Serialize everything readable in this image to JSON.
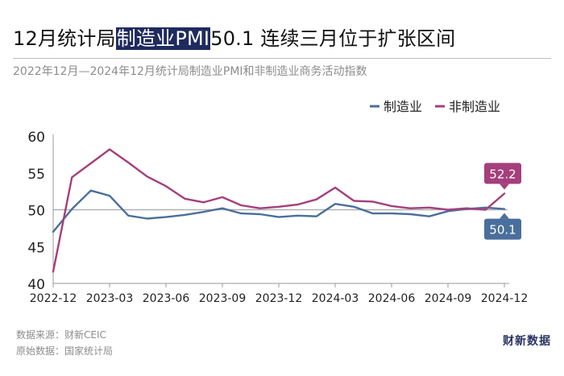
{
  "header": {
    "title_prefix": "12月统计局",
    "title_highlight": "制造业PMI",
    "title_suffix": "50.1 连续三月位于扩张区间",
    "subtitle": "2022年12月—2024年12月统计局制造业PMI和非制造业商务活动指数"
  },
  "footer": {
    "source": "数据来源：财新CEIC",
    "original": "原始数据：国家统计局",
    "brand": "财新数据"
  },
  "colors": {
    "manufacturing": "#4a6f9c",
    "non_manufacturing": "#a43f7c",
    "reference_line": "#b0b0b0",
    "title_highlight_bg": "#1f2a5e"
  },
  "chart_data": {
    "type": "line",
    "title": "",
    "xlabel": "",
    "ylabel": "",
    "x": [
      "2022-12",
      "2023-01",
      "2023-02",
      "2023-03",
      "2023-04",
      "2023-05",
      "2023-06",
      "2023-07",
      "2023-08",
      "2023-09",
      "2023-10",
      "2023-11",
      "2023-12",
      "2024-01",
      "2024-02",
      "2024-03",
      "2024-04",
      "2024-05",
      "2024-06",
      "2024-07",
      "2024-08",
      "2024-09",
      "2024-10",
      "2024-11",
      "2024-12"
    ],
    "x_tick_labels": [
      "2022-12",
      "2023-03",
      "2023-06",
      "2023-09",
      "2023-12",
      "2024-03",
      "2024-06",
      "2024-09",
      "2024-12"
    ],
    "ylim": [
      40,
      60
    ],
    "y_ticks": [
      40,
      45,
      50,
      55,
      60
    ],
    "reference_line": 50,
    "grid": false,
    "legend_position": "top-right",
    "series": [
      {
        "name": "制造业",
        "values": [
          47.0,
          50.1,
          52.6,
          51.9,
          49.2,
          48.8,
          49.0,
          49.3,
          49.7,
          50.2,
          49.5,
          49.4,
          49.0,
          49.2,
          49.1,
          50.8,
          50.4,
          49.5,
          49.5,
          49.4,
          49.1,
          49.8,
          50.1,
          50.3,
          50.1
        ],
        "end_label": "50.1"
      },
      {
        "name": "非制造业",
        "values": [
          41.6,
          54.4,
          56.3,
          58.2,
          56.4,
          54.5,
          53.2,
          51.5,
          51.0,
          51.7,
          50.6,
          50.2,
          50.4,
          50.7,
          51.4,
          53.0,
          51.2,
          51.1,
          50.5,
          50.2,
          50.3,
          50.0,
          50.2,
          50.0,
          52.2
        ],
        "end_label": "52.2"
      }
    ]
  }
}
